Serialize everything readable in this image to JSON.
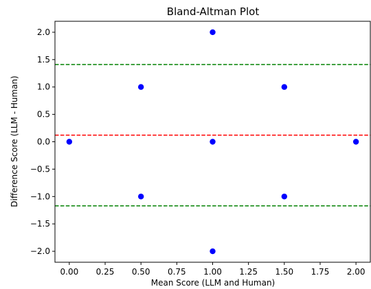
{
  "chart_data": {
    "type": "scatter",
    "title": "Bland-Altman Plot",
    "xlabel": "Mean Score (LLM and Human)",
    "ylabel": "Difference Score (LLM - Human)",
    "xlim": [
      -0.1,
      2.1
    ],
    "ylim": [
      -2.2,
      2.2
    ],
    "x_ticks": [
      "0.00",
      "0.25",
      "0.50",
      "0.75",
      "1.00",
      "1.25",
      "1.50",
      "1.75",
      "2.00"
    ],
    "y_ticks": [
      "-2.0",
      "-1.5",
      "-1.0",
      "-0.5",
      "0.0",
      "0.5",
      "1.0",
      "1.5",
      "2.0"
    ],
    "grid": false,
    "points": [
      {
        "x": 0.0,
        "y": 0.0
      },
      {
        "x": 0.5,
        "y": 1.0
      },
      {
        "x": 0.5,
        "y": -1.0
      },
      {
        "x": 1.0,
        "y": 2.0
      },
      {
        "x": 1.0,
        "y": 0.0
      },
      {
        "x": 1.0,
        "y": -2.0
      },
      {
        "x": 1.5,
        "y": 1.0
      },
      {
        "x": 1.5,
        "y": -1.0
      },
      {
        "x": 2.0,
        "y": 0.0
      }
    ],
    "point_color": "#0000ff",
    "reference_lines": [
      {
        "y": 0.12,
        "color": "#ff0000",
        "style": "dashed"
      },
      {
        "y": 1.41,
        "color": "#008000",
        "style": "dashed"
      },
      {
        "y": -1.17,
        "color": "#008000",
        "style": "dashed"
      }
    ]
  }
}
